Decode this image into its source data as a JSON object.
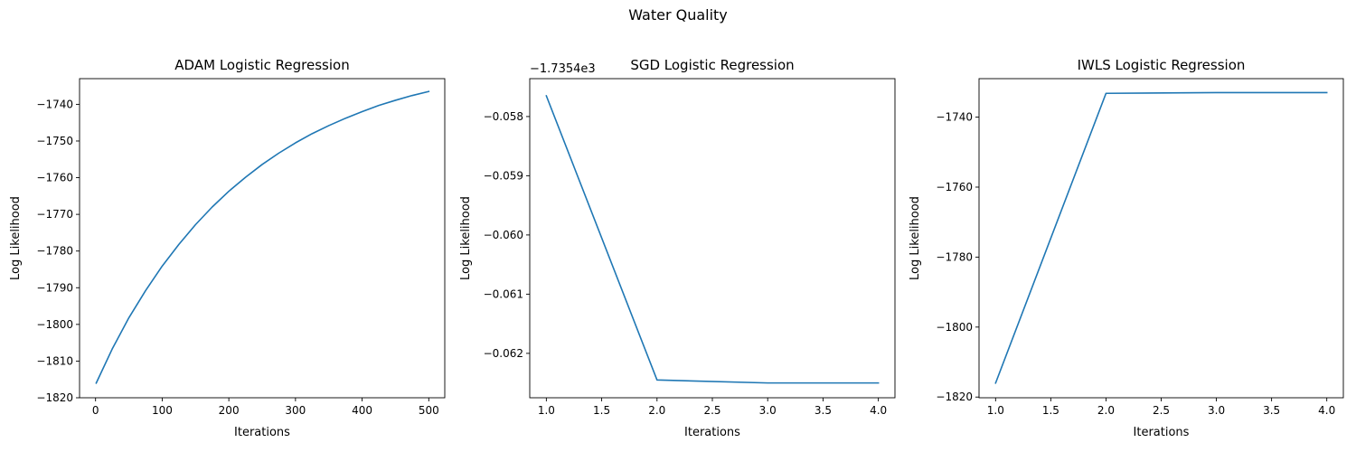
{
  "figure": {
    "suptitle": "Water Quality"
  },
  "chart_data": [
    {
      "type": "line",
      "title": "ADAM Logistic Regression",
      "xlabel": "Iterations",
      "ylabel": "Log Likelihood",
      "xlim": [
        -24,
        524
      ],
      "ylim": [
        -1820,
        -1733
      ],
      "xticks": [
        0,
        100,
        200,
        300,
        400,
        500
      ],
      "xtick_labels": [
        "0",
        "100",
        "200",
        "300",
        "400",
        "500"
      ],
      "yticks": [
        -1820,
        -1810,
        -1800,
        -1790,
        -1780,
        -1770,
        -1760,
        -1750,
        -1740
      ],
      "ytick_labels": [
        "−1820",
        "−1810",
        "−1800",
        "−1790",
        "−1780",
        "−1770",
        "−1760",
        "−1750",
        "−1740"
      ],
      "offset_label": "",
      "grid": false,
      "color": "#1f77b4",
      "series": [
        {
          "x": [
            1,
            25,
            50,
            75,
            100,
            125,
            150,
            175,
            200,
            225,
            250,
            275,
            300,
            325,
            350,
            375,
            400,
            425,
            450,
            475,
            500
          ],
          "values": [
            -1816.0,
            -1806.7,
            -1798.2,
            -1790.8,
            -1784.1,
            -1778.2,
            -1772.8,
            -1768.0,
            -1763.7,
            -1759.9,
            -1756.4,
            -1753.3,
            -1750.5,
            -1748.0,
            -1745.8,
            -1743.8,
            -1742.0,
            -1740.3,
            -1738.9,
            -1737.6,
            -1736.5
          ]
        }
      ]
    },
    {
      "type": "line",
      "title": "SGD Logistic Regression",
      "xlabel": "Iterations",
      "ylabel": "Log Likelihood",
      "xlim": [
        0.85,
        4.15
      ],
      "ylim": [
        -0.06275,
        -0.05736
      ],
      "xticks": [
        1.0,
        1.5,
        2.0,
        2.5,
        3.0,
        3.5,
        4.0
      ],
      "xtick_labels": [
        "1.0",
        "1.5",
        "2.0",
        "2.5",
        "3.0",
        "3.5",
        "4.0"
      ],
      "yticks": [
        -0.062,
        -0.061,
        -0.06,
        -0.059,
        -0.058
      ],
      "ytick_labels": [
        "−0.062",
        "−0.061",
        "−0.060",
        "−0.059",
        "−0.058"
      ],
      "offset_label": "−1.7354e3",
      "grid": false,
      "color": "#1f77b4",
      "series": [
        {
          "x": [
            1,
            2,
            3,
            4
          ],
          "values": [
            -0.05765,
            -0.06245,
            -0.0625,
            -0.0625
          ]
        }
      ]
    },
    {
      "type": "line",
      "title": "IWLS Logistic Regression",
      "xlabel": "Iterations",
      "ylabel": "Log Likelihood",
      "xlim": [
        0.85,
        4.15
      ],
      "ylim": [
        -1820.2,
        -1729
      ],
      "xticks": [
        1.0,
        1.5,
        2.0,
        2.5,
        3.0,
        3.5,
        4.0
      ],
      "xtick_labels": [
        "1.0",
        "1.5",
        "2.0",
        "2.5",
        "3.0",
        "3.5",
        "4.0"
      ],
      "yticks": [
        -1820,
        -1800,
        -1780,
        -1760,
        -1740
      ],
      "ytick_labels": [
        "−1820",
        "−1800",
        "−1780",
        "−1760",
        "−1740"
      ],
      "offset_label": "",
      "grid": false,
      "color": "#1f77b4",
      "series": [
        {
          "x": [
            1,
            2,
            3,
            4
          ],
          "values": [
            -1816.0,
            -1733.2,
            -1733.0,
            -1733.0
          ]
        }
      ]
    }
  ]
}
